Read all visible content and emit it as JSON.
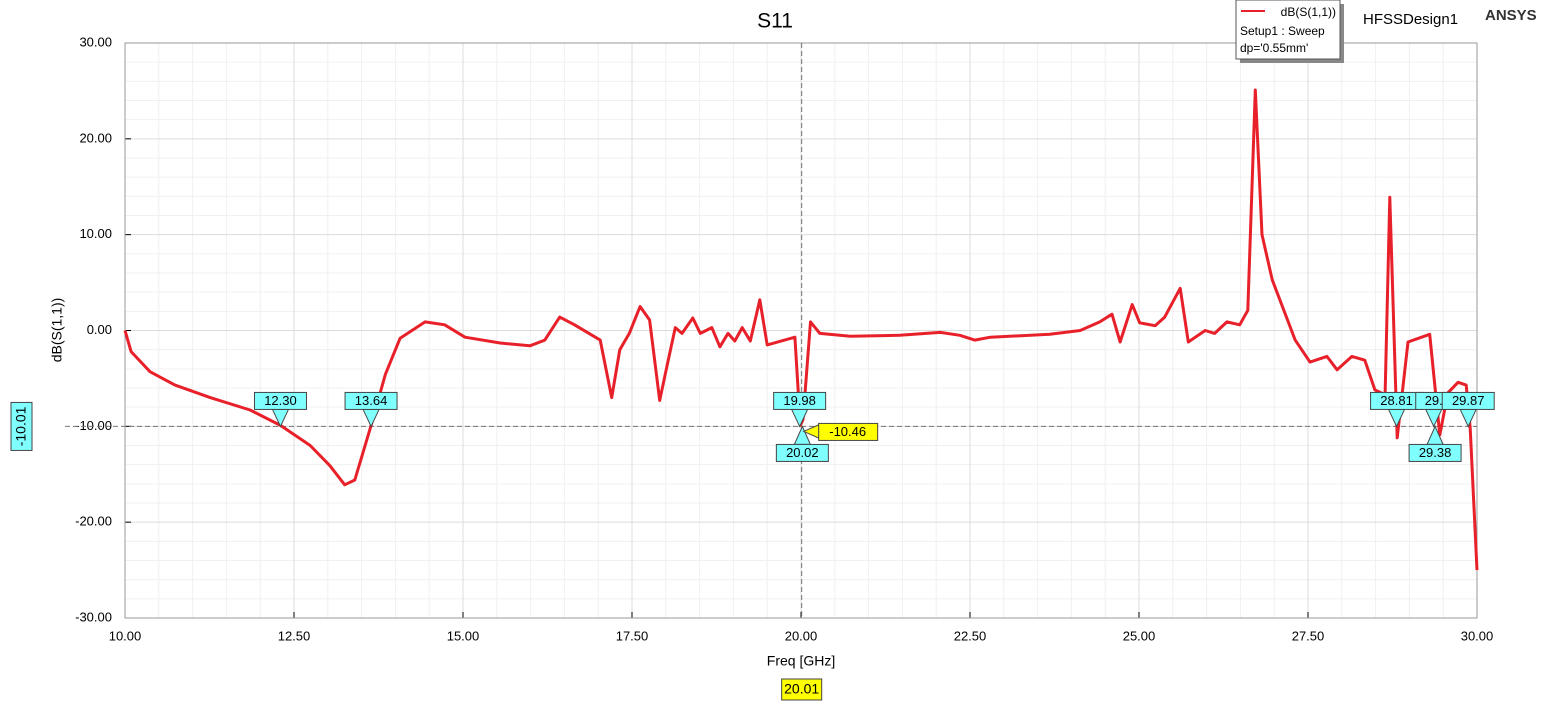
{
  "chart_data": {
    "type": "line",
    "title": "S11",
    "xlabel": "Freq [GHz]",
    "ylabel": "dB(S(1,1))",
    "brand": "ANSYS",
    "design": "HFSSDesign1",
    "legend_lines": [
      "Setup1 : Sweep",
      "dp='0.55mm'"
    ],
    "xlim": [
      10,
      30
    ],
    "ylim": [
      -30,
      30
    ],
    "grid": true,
    "minor_grid": true,
    "xticks": [
      {
        "value": 10,
        "label": "10.00"
      },
      {
        "value": 12.5,
        "label": "12.50"
      },
      {
        "value": 15,
        "label": "15.00"
      },
      {
        "value": 17.5,
        "label": "17.50"
      },
      {
        "value": 20,
        "label": "20.00"
      },
      {
        "value": 22.5,
        "label": "22.50"
      },
      {
        "value": 25,
        "label": "25.00"
      },
      {
        "value": 27.5,
        "label": "27.50"
      },
      {
        "value": 30,
        "label": "30.00"
      }
    ],
    "yticks": [
      {
        "value": -30,
        "label": "-30.00"
      },
      {
        "value": -20,
        "label": "-20.00"
      },
      {
        "value": -10,
        "label": "-10.00"
      },
      {
        "value": 0,
        "label": "0.00"
      },
      {
        "value": 10,
        "label": "10.00"
      },
      {
        "value": 20,
        "label": "20.00"
      },
      {
        "value": 30,
        "label": "30.00"
      }
    ],
    "x": [
      10.0,
      10.09,
      10.37,
      10.74,
      11.26,
      11.85,
      12.3,
      12.74,
      13.03,
      13.25,
      13.4,
      13.64,
      13.85,
      14.07,
      14.44,
      14.73,
      15.03,
      15.55,
      15.99,
      16.21,
      16.43,
      16.65,
      17.03,
      17.2,
      17.32,
      17.46,
      17.62,
      17.76,
      17.91,
      18.02,
      18.14,
      18.24,
      18.4,
      18.51,
      18.68,
      18.8,
      18.92,
      19.02,
      19.13,
      19.25,
      19.39,
      19.5,
      19.91,
      19.99,
      20.03,
      20.14,
      20.28,
      20.73,
      21.46,
      22.06,
      22.35,
      22.57,
      22.8,
      23.68,
      24.13,
      24.42,
      24.6,
      24.72,
      24.9,
      25.01,
      25.24,
      25.38,
      25.61,
      25.73,
      25.98,
      26.12,
      26.3,
      26.49,
      26.61,
      26.72,
      26.82,
      26.97,
      27.31,
      27.53,
      27.78,
      27.93,
      28.15,
      28.34,
      28.49,
      28.64,
      28.71,
      28.82,
      28.98,
      29.3,
      29.45,
      29.57,
      29.72,
      29.84,
      29.9,
      30.0
    ],
    "series": [
      {
        "name": "dB(S(1,1))",
        "color": "#e8202a",
        "values": [
          0.0,
          -2.2,
          -4.3,
          -5.7,
          -7.0,
          -8.3,
          -9.9,
          -12.0,
          -14.1,
          -16.1,
          -15.6,
          -9.9,
          -4.6,
          -0.8,
          0.9,
          0.6,
          -0.7,
          -1.3,
          -1.6,
          -1.0,
          1.4,
          0.6,
          -1.0,
          -7.0,
          -2.0,
          -0.3,
          2.5,
          1.1,
          -7.3,
          -3.6,
          0.3,
          -0.3,
          1.3,
          -0.3,
          0.3,
          -1.7,
          -0.3,
          -1.1,
          0.3,
          -1.1,
          3.2,
          -1.5,
          -0.7,
          -9.9,
          -9.3,
          0.9,
          -0.3,
          -0.6,
          -0.5,
          -0.2,
          -0.5,
          -1.0,
          -0.7,
          -0.4,
          0.0,
          0.9,
          1.7,
          -1.2,
          2.7,
          0.8,
          0.5,
          1.4,
          4.4,
          -1.2,
          0.0,
          -0.3,
          0.9,
          0.6,
          2.1,
          25.1,
          10.0,
          5.3,
          -1.0,
          -3.3,
          -2.7,
          -4.1,
          -2.7,
          -3.1,
          -6.2,
          -6.7,
          13.9,
          -11.2,
          -1.2,
          -0.4,
          -10.9,
          -6.5,
          -5.4,
          -5.7,
          -10.2,
          -25.0
        ]
      }
    ],
    "markers": [
      {
        "label": "12.30",
        "x": 12.3,
        "side": "above"
      },
      {
        "label": "13.64",
        "x": 13.64,
        "side": "above"
      },
      {
        "label": "19.98",
        "x": 19.98,
        "side": "above"
      },
      {
        "label": "20.02",
        "x": 20.02,
        "side": "below"
      },
      {
        "label": "28.81",
        "x": 28.81,
        "side": "above"
      },
      {
        "label": "29.",
        "x": 29.36,
        "side": "above"
      },
      {
        "label": "29.38",
        "x": 29.38,
        "side": "below"
      },
      {
        "label": "29.87",
        "x": 29.87,
        "side": "above"
      }
    ],
    "cursor": {
      "x": 20.01,
      "y": -10.01,
      "value": -10.46
    }
  }
}
